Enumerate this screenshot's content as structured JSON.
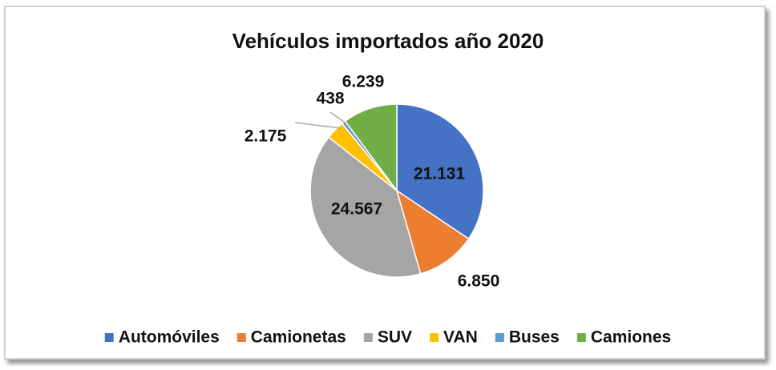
{
  "chart_data": {
    "type": "pie",
    "title": "Vehículos importados año 2020",
    "categories": [
      "Automóviles",
      "Camionetas",
      "SUV",
      "VAN",
      "Buses",
      "Camiones"
    ],
    "values": [
      21131,
      6850,
      24567,
      2175,
      438,
      6239
    ],
    "value_labels": [
      "21.131",
      "6.850",
      "24.567",
      "2.175",
      "438",
      "6.239"
    ],
    "colors": [
      "#4472c4",
      "#ed7d31",
      "#a5a5a5",
      "#ffc000",
      "#5b9bd5",
      "#70ad47"
    ],
    "legend": "bottom"
  }
}
